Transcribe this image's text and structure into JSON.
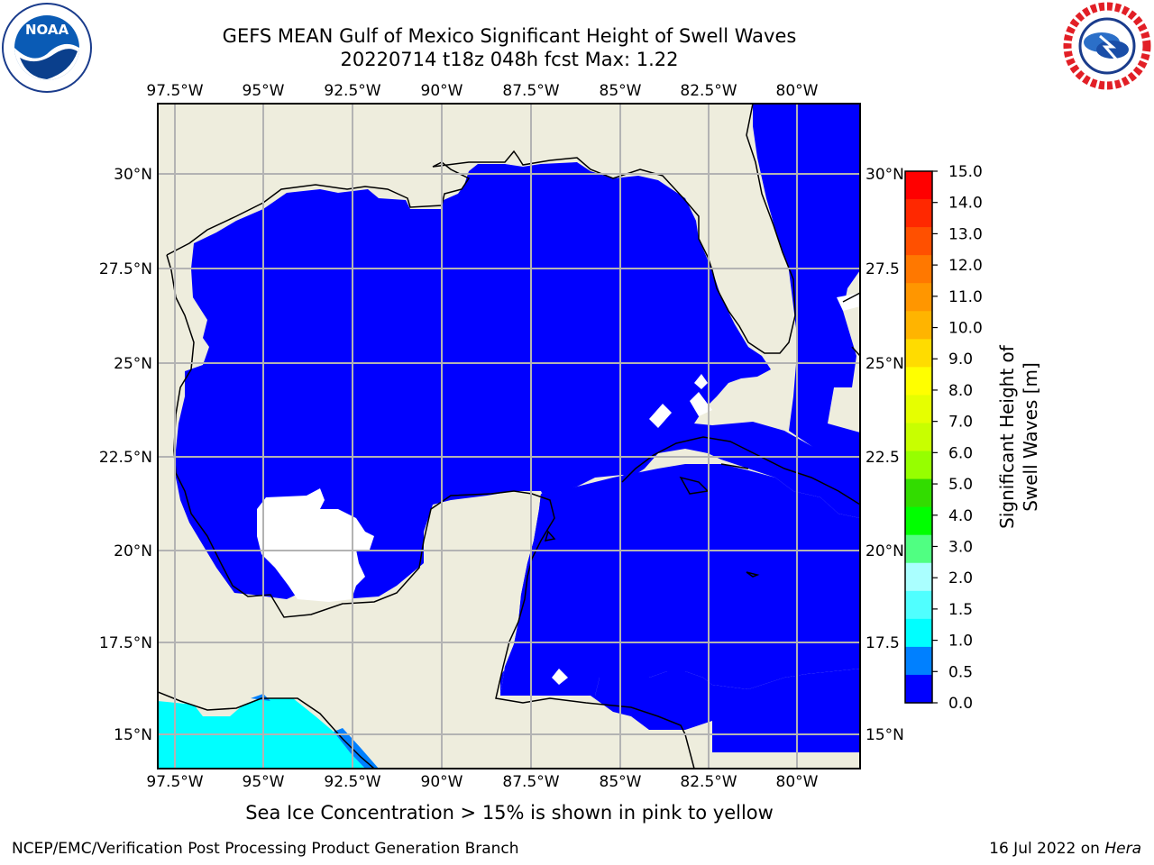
{
  "header": {
    "title_line1": "GEFS MEAN Gulf of Mexico Significant Height of Swell Waves",
    "title_line2": "20220714 t18z 048h fcst    Max: 1.22"
  },
  "map": {
    "lon_labels": [
      "97.5°W",
      "95°W",
      "92.5°W",
      "90°W",
      "87.5°W",
      "85°W",
      "82.5°W",
      "80°W"
    ],
    "lat_labels_left": [
      "30°N",
      "27.5°N",
      "25°N",
      "22.5°N",
      "20°N",
      "17.5°N",
      "15°N"
    ],
    "lat_labels_right": [
      "30°N",
      "27.5",
      "25°N",
      "22.5",
      "20°N",
      "17.5",
      "15°N"
    ]
  },
  "colorbar": {
    "ticks": [
      "15.0",
      "14.0",
      "13.0",
      "12.0",
      "11.0",
      "10.0",
      "9.0",
      "8.0",
      "7.0",
      "6.0",
      "5.0",
      "4.0",
      "3.0",
      "2.0",
      "1.5",
      "1.0",
      "0.5",
      "0.0"
    ],
    "colors": [
      "#ff0000",
      "#ff2800",
      "#ff5000",
      "#ff7800",
      "#ff9600",
      "#ffb400",
      "#ffdc00",
      "#ffff00",
      "#e6ff00",
      "#c8ff00",
      "#96ff00",
      "#32dc00",
      "#00ff00",
      "#50ff82",
      "#aaffff",
      "#50ffff",
      "#00ffff",
      "#0080ff",
      "#0000ff"
    ],
    "label": "Significant Height of Swell Waves [m]"
  },
  "footer": {
    "note": "Sea Ice Concentration > 15% is shown in pink to yellow",
    "credit_left": "NCEP/EMC/Verification Post Processing Product Generation Branch",
    "credit_right_prefix": "16 Jul 2022 on ",
    "credit_right_host": "Hera"
  },
  "colors": {
    "land": "#eeeddd",
    "ocean_low": "#0000ff",
    "ocean_cyan": "#00ffff",
    "grid": "#b3b3b3"
  },
  "logos": {
    "left": "noaa-logo",
    "right": "nws-logo"
  }
}
